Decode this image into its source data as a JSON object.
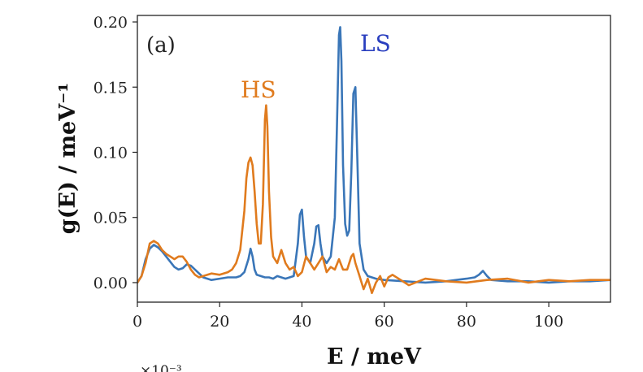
{
  "chart_data": {
    "type": "line",
    "panel_label": "(a)",
    "xlabel": "E / meV",
    "ylabel": "g(E) / meV⁻¹",
    "xlim": [
      0,
      115
    ],
    "ylim": [
      -0.015,
      0.205
    ],
    "xticks": [
      0,
      20,
      40,
      60,
      80,
      100
    ],
    "xtick_labels": [
      "0",
      "20",
      "40",
      "60",
      "80",
      "100"
    ],
    "yticks": [
      0.0,
      0.05,
      0.1,
      0.15,
      0.2
    ],
    "ytick_labels": [
      "0.00",
      "0.05",
      "0.10",
      "0.15",
      "0.20"
    ],
    "grid": false,
    "legend": "none",
    "offset_note": "×10⁻³",
    "series": [
      {
        "name": "LS",
        "color": "#3a76b8",
        "label_color": "#2a3fbf",
        "x": [
          0,
          1,
          2,
          3,
          4,
          5,
          6,
          7,
          8,
          9,
          10,
          11,
          12,
          13,
          14,
          16,
          18,
          20,
          22,
          24,
          25,
          26,
          27,
          27.5,
          28,
          28.5,
          29,
          30,
          31,
          32,
          33,
          34,
          35,
          36,
          37,
          38,
          39,
          39.5,
          40,
          40.5,
          41,
          42,
          43,
          43.5,
          44,
          44.5,
          45,
          46,
          47,
          48,
          48.5,
          49,
          49.3,
          49.6,
          50,
          50.5,
          51,
          51.5,
          52,
          52.5,
          53,
          53.5,
          54,
          55,
          56,
          58,
          60,
          65,
          70,
          75,
          80,
          82,
          83,
          84,
          85,
          86,
          90,
          95,
          100,
          105,
          110,
          115
        ],
        "y": [
          0.0,
          0.005,
          0.018,
          0.026,
          0.029,
          0.027,
          0.024,
          0.02,
          0.016,
          0.012,
          0.01,
          0.011,
          0.014,
          0.013,
          0.01,
          0.004,
          0.002,
          0.003,
          0.004,
          0.004,
          0.005,
          0.008,
          0.018,
          0.026,
          0.02,
          0.01,
          0.006,
          0.005,
          0.004,
          0.004,
          0.003,
          0.005,
          0.004,
          0.003,
          0.004,
          0.005,
          0.03,
          0.052,
          0.056,
          0.035,
          0.02,
          0.015,
          0.03,
          0.043,
          0.044,
          0.03,
          0.02,
          0.015,
          0.02,
          0.05,
          0.12,
          0.19,
          0.196,
          0.17,
          0.09,
          0.045,
          0.036,
          0.04,
          0.085,
          0.145,
          0.15,
          0.09,
          0.03,
          0.01,
          0.005,
          0.003,
          0.002,
          0.001,
          0.0,
          0.001,
          0.003,
          0.004,
          0.006,
          0.009,
          0.005,
          0.002,
          0.001,
          0.001,
          0.0,
          0.001,
          0.001,
          0.002
        ]
      },
      {
        "name": "HS",
        "color": "#e07b1e",
        "label_color": "#e07b1e",
        "x": [
          0,
          1,
          2,
          3,
          4,
          5,
          6,
          7,
          8,
          9,
          10,
          11,
          12,
          13,
          14,
          15,
          16,
          18,
          20,
          22,
          23,
          24,
          25,
          26,
          26.5,
          27,
          27.5,
          28,
          28.5,
          29,
          29.5,
          30,
          30.5,
          31,
          31.3,
          31.6,
          32,
          32.5,
          33,
          34,
          35,
          36,
          37,
          38,
          39,
          40,
          41,
          42,
          43,
          44,
          45,
          46,
          47,
          48,
          49,
          50,
          51,
          52,
          52.5,
          53,
          54,
          55,
          56,
          57,
          58,
          59,
          60,
          61,
          62,
          64,
          66,
          70,
          75,
          80,
          85,
          90,
          95,
          100,
          105,
          110,
          115
        ],
        "y": [
          0.0,
          0.005,
          0.015,
          0.03,
          0.032,
          0.03,
          0.025,
          0.022,
          0.02,
          0.018,
          0.02,
          0.02,
          0.016,
          0.01,
          0.006,
          0.004,
          0.005,
          0.007,
          0.006,
          0.008,
          0.01,
          0.015,
          0.025,
          0.055,
          0.08,
          0.092,
          0.096,
          0.09,
          0.07,
          0.045,
          0.03,
          0.03,
          0.06,
          0.125,
          0.136,
          0.12,
          0.07,
          0.035,
          0.02,
          0.015,
          0.025,
          0.015,
          0.01,
          0.012,
          0.005,
          0.008,
          0.02,
          0.015,
          0.01,
          0.015,
          0.02,
          0.008,
          0.012,
          0.01,
          0.018,
          0.01,
          0.01,
          0.02,
          0.022,
          0.015,
          0.005,
          -0.005,
          0.003,
          -0.008,
          0.0,
          0.005,
          -0.003,
          0.004,
          0.006,
          0.002,
          -0.002,
          0.003,
          0.001,
          0.0,
          0.002,
          0.003,
          0.0,
          0.002,
          0.001,
          0.002,
          0.002
        ]
      }
    ]
  }
}
